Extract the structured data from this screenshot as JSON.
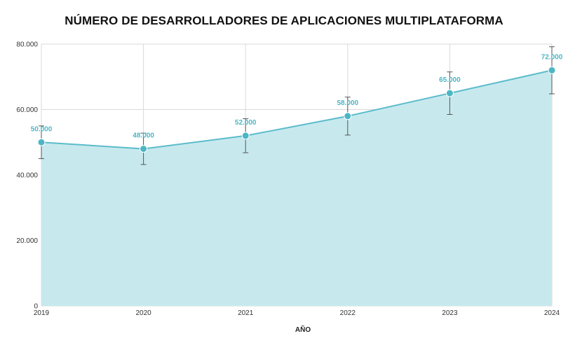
{
  "chart_data": {
    "type": "area",
    "title": "NÚMERO DE DESARROLLADORES DE APLICACIONES MULTIPLATAFORMA",
    "xlabel": "AÑO",
    "ylabel": "",
    "categories": [
      "2019",
      "2020",
      "2021",
      "2022",
      "2023",
      "2024"
    ],
    "series": [
      {
        "values": [
          50000,
          48000,
          52000,
          58000,
          65000,
          72000
        ],
        "data_labels": [
          "50.000",
          "48.000",
          "52.000",
          "58.000",
          "65.000",
          "72.000"
        ],
        "error_low": [
          45000,
          43200,
          46800,
          52200,
          58500,
          64800
        ],
        "error_high": [
          55000,
          52800,
          57200,
          63800,
          71500,
          79200
        ]
      }
    ],
    "ylim": [
      0,
      80000
    ],
    "y_ticks": [
      0,
      20000,
      40000,
      60000,
      80000
    ],
    "y_tick_labels": [
      "0",
      "20.000",
      "40.000",
      "60.000",
      "80.000"
    ],
    "grid": true,
    "legend": "none",
    "colors": {
      "line": "#5bbcca",
      "fill": "#c7e9ee",
      "marker": "#4db6c4",
      "data_label": "#4db6c4",
      "error_bar": "#555555",
      "grid": "#d9d9d9"
    }
  }
}
